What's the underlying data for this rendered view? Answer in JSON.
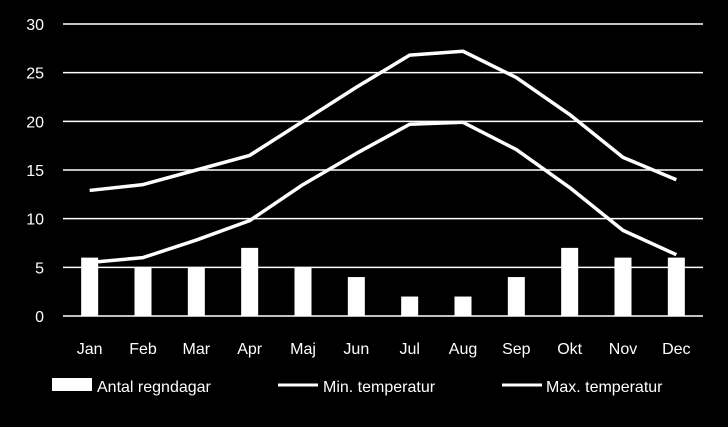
{
  "chart_data": {
    "type": "bar",
    "categories": [
      "Jan",
      "Feb",
      "Mar",
      "Apr",
      "Maj",
      "Jun",
      "Jul",
      "Aug",
      "Sep",
      "Okt",
      "Nov",
      "Dec"
    ],
    "ylim": [
      0,
      30
    ],
    "yticks": [
      "0",
      "5",
      "10",
      "15",
      "20",
      "25",
      "30"
    ],
    "grid": true,
    "legend_position": "bottom",
    "colors": {
      "background": "#000000",
      "foreground": "#ffffff"
    },
    "series": [
      {
        "name": "Antal regndagar",
        "type": "bar",
        "values": [
          6,
          5,
          5,
          7,
          5,
          4,
          2,
          2,
          4,
          7,
          6,
          6
        ]
      },
      {
        "name": "Min. temperatur",
        "type": "line",
        "values": [
          5.5,
          6,
          7.8,
          9.8,
          13.5,
          16.7,
          19.7,
          19.9,
          17.1,
          13.2,
          8.8,
          6.3
        ]
      },
      {
        "name": "Max. temperatur",
        "type": "line",
        "values": [
          12.9,
          13.5,
          15.0,
          16.5,
          20.0,
          23.5,
          26.8,
          27.2,
          24.5,
          20.7,
          16.3,
          14.0
        ]
      }
    ]
  }
}
